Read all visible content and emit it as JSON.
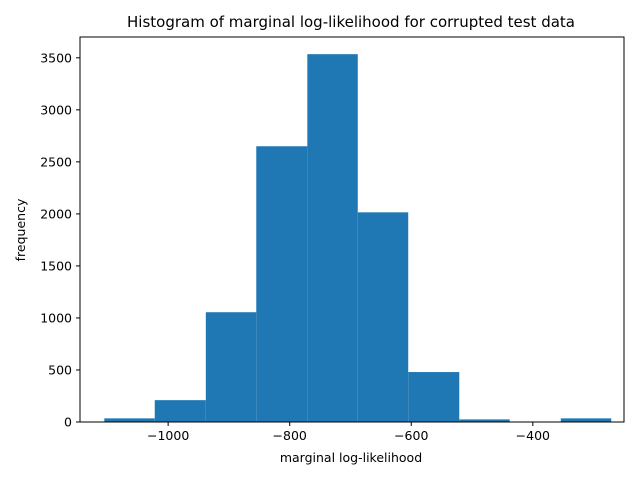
{
  "chart_data": {
    "type": "bar",
    "title": "Histogram of marginal log-likelihood for corrupted test data",
    "xlabel": "marginal log-likelihood",
    "ylabel": "frequency",
    "xlim": [
      -1145,
      -250
    ],
    "ylim": [
      0,
      3700
    ],
    "bar_color": "#1f77b4",
    "grid": false,
    "x_ticks": [
      -1000,
      -800,
      -600,
      -400
    ],
    "x_tick_labels": [
      "−1000",
      "−800",
      "−600",
      "−400"
    ],
    "y_ticks": [
      0,
      500,
      1000,
      1500,
      2000,
      2500,
      3000,
      3500
    ],
    "y_tick_labels": [
      "0",
      "500",
      "1000",
      "1500",
      "2000",
      "2500",
      "3000",
      "3500"
    ],
    "bins": [
      {
        "x0": -1105,
        "x1": -1022,
        "count": 35
      },
      {
        "x0": -1022,
        "x1": -938,
        "count": 210
      },
      {
        "x0": -938,
        "x1": -855,
        "count": 1055
      },
      {
        "x0": -855,
        "x1": -771,
        "count": 2650
      },
      {
        "x0": -771,
        "x1": -688,
        "count": 3535
      },
      {
        "x0": -688,
        "x1": -605,
        "count": 2015
      },
      {
        "x0": -605,
        "x1": -521,
        "count": 480
      },
      {
        "x0": -521,
        "x1": -438,
        "count": 25
      },
      {
        "x0": -438,
        "x1": -354,
        "count": 0
      },
      {
        "x0": -354,
        "x1": -271,
        "count": 35
      }
    ]
  }
}
